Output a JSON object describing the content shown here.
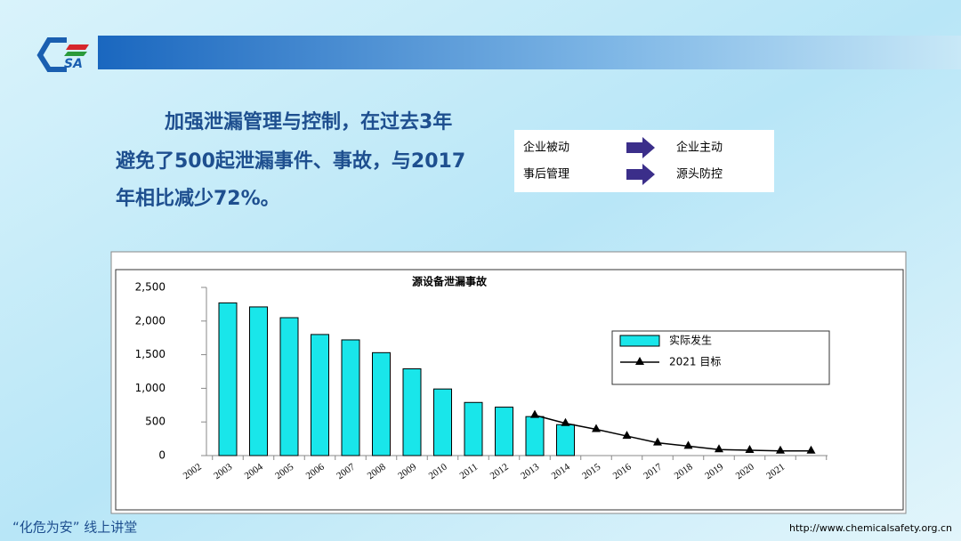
{
  "header": {
    "logo": "SA"
  },
  "text": {
    "lines": [
      "加强泄漏管理与控制，在过去3年",
      "避免了500起泄漏事件、事故，与2017",
      "年相比减少72%。"
    ]
  },
  "flow": {
    "rows": [
      [
        "企业被动",
        "企业主动"
      ],
      [
        "事后管理",
        "源头防控"
      ]
    ]
  },
  "footer": {
    "left": "“化危为安” 线上讲堂",
    "right": "http://www.chemicalsafety.org.cn"
  },
  "chart_data": {
    "type": "bar",
    "title": "源设备泄漏事故",
    "categories": [
      "2002",
      "2003",
      "2004",
      "2005",
      "2006",
      "2007",
      "2008",
      "2009",
      "2010",
      "2011",
      "2012",
      "2013",
      "2014",
      "2015",
      "2016",
      "2017",
      "2018",
      "2019",
      "2020",
      "2021",
      null
    ],
    "series": [
      {
        "name": "实际发生",
        "type": "bar",
        "color": "#19e6ea",
        "values": [
          null,
          2270,
          2210,
          2050,
          1800,
          1720,
          1530,
          1290,
          990,
          790,
          720,
          580,
          460,
          null,
          null,
          null,
          null,
          null,
          null,
          null,
          null
        ]
      },
      {
        "name": "2021 目标",
        "type": "line",
        "color": "#000000",
        "values": [
          null,
          null,
          null,
          null,
          null,
          null,
          null,
          null,
          null,
          null,
          null,
          600,
          480,
          390,
          290,
          190,
          140,
          90,
          80,
          70,
          70
        ]
      }
    ],
    "ylim": [
      0,
      2500
    ],
    "yticks": [
      0,
      500,
      {
        "value": 1000,
        "label": "1,000"
      },
      {
        "value": 1500,
        "label": "1,500"
      },
      {
        "value": 2000,
        "label": "2,000"
      },
      {
        "value": 2500,
        "label": "2,500"
      }
    ],
    "legend": "right"
  }
}
